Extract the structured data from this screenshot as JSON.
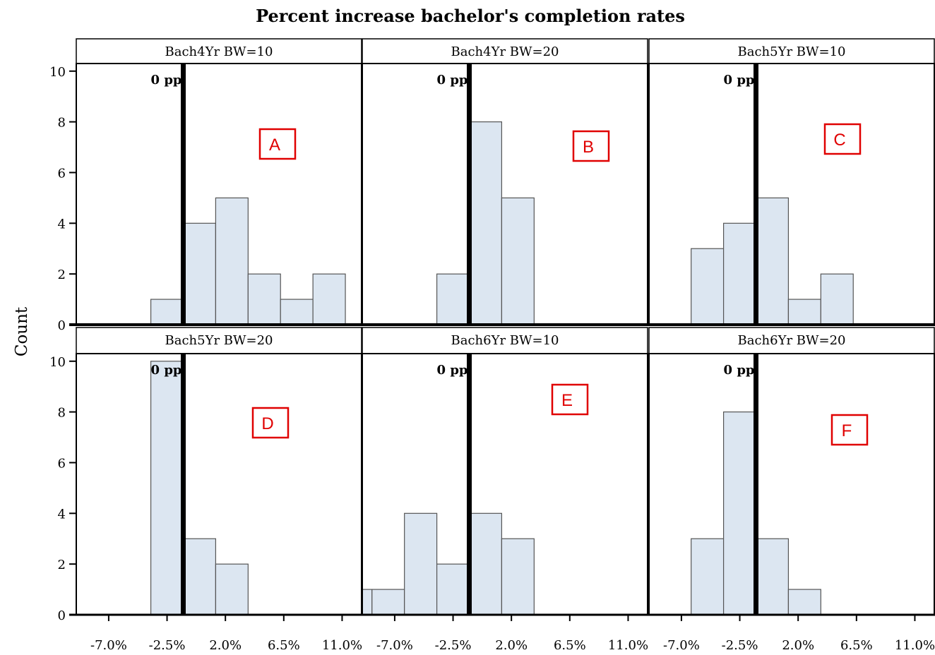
{
  "chart_data": {
    "type": "bar",
    "title": "Percent increase bachelor's completion rates",
    "ylabel": "Count",
    "xlabel": "",
    "x_ticks": [
      -7.0,
      -2.5,
      2.0,
      6.5,
      11.0
    ],
    "x_tick_labels": [
      "-7.0%",
      "-2.5%",
      "2.0%",
      "6.5%",
      "11.0%"
    ],
    "xlim": [
      -9.5,
      12.5
    ],
    "ylim": [
      0,
      10.3
    ],
    "y_ticks": [
      0,
      2,
      4,
      6,
      8,
      10
    ],
    "y_tick_labels": [
      "0",
      "2",
      "4",
      "6",
      "8",
      "10"
    ],
    "bin_width": 2.5,
    "reference_line": {
      "x": -1.25,
      "label": "0 pp"
    },
    "bar_fill": "#dce6f1",
    "bar_stroke": "#555555",
    "ref_color": "#000000",
    "badge_color": "#e00000",
    "panels": [
      {
        "strip": "Bach4Yr BW=10",
        "badge": "A",
        "bins": [
          {
            "x0": -3.75,
            "count": 1
          },
          {
            "x0": -1.25,
            "count": 4
          },
          {
            "x0": 1.25,
            "count": 5
          },
          {
            "x0": 3.75,
            "count": 2
          },
          {
            "x0": 6.25,
            "count": 1
          },
          {
            "x0": 8.75,
            "count": 2
          }
        ]
      },
      {
        "strip": "Bach4Yr BW=20",
        "badge": "B",
        "bins": [
          {
            "x0": -3.75,
            "count": 2
          },
          {
            "x0": -1.25,
            "count": 8
          },
          {
            "x0": 1.25,
            "count": 5
          }
        ]
      },
      {
        "strip": "Bach5Yr BW=10",
        "badge": "C",
        "bins": [
          {
            "x0": -6.25,
            "count": 3
          },
          {
            "x0": -3.75,
            "count": 4
          },
          {
            "x0": -1.25,
            "count": 5
          },
          {
            "x0": 1.25,
            "count": 1
          },
          {
            "x0": 3.75,
            "count": 2
          }
        ]
      },
      {
        "strip": "Bach5Yr BW=20",
        "badge": "D",
        "bins": [
          {
            "x0": -3.75,
            "count": 10
          },
          {
            "x0": -1.25,
            "count": 3
          },
          {
            "x0": 1.25,
            "count": 2
          }
        ]
      },
      {
        "strip": "Bach6Yr BW=10",
        "badge": "E",
        "bins": [
          {
            "x0": -11.25,
            "count": 1
          },
          {
            "x0": -8.75,
            "count": 1
          },
          {
            "x0": -6.25,
            "count": 4
          },
          {
            "x0": -3.75,
            "count": 2
          },
          {
            "x0": -1.25,
            "count": 4
          },
          {
            "x0": 1.25,
            "count": 3
          }
        ]
      },
      {
        "strip": "Bach6Yr BW=20",
        "badge": "F",
        "bins": [
          {
            "x0": -6.25,
            "count": 3
          },
          {
            "x0": -3.75,
            "count": 8
          },
          {
            "x0": -1.25,
            "count": 3
          },
          {
            "x0": 1.25,
            "count": 1
          }
        ]
      }
    ]
  }
}
